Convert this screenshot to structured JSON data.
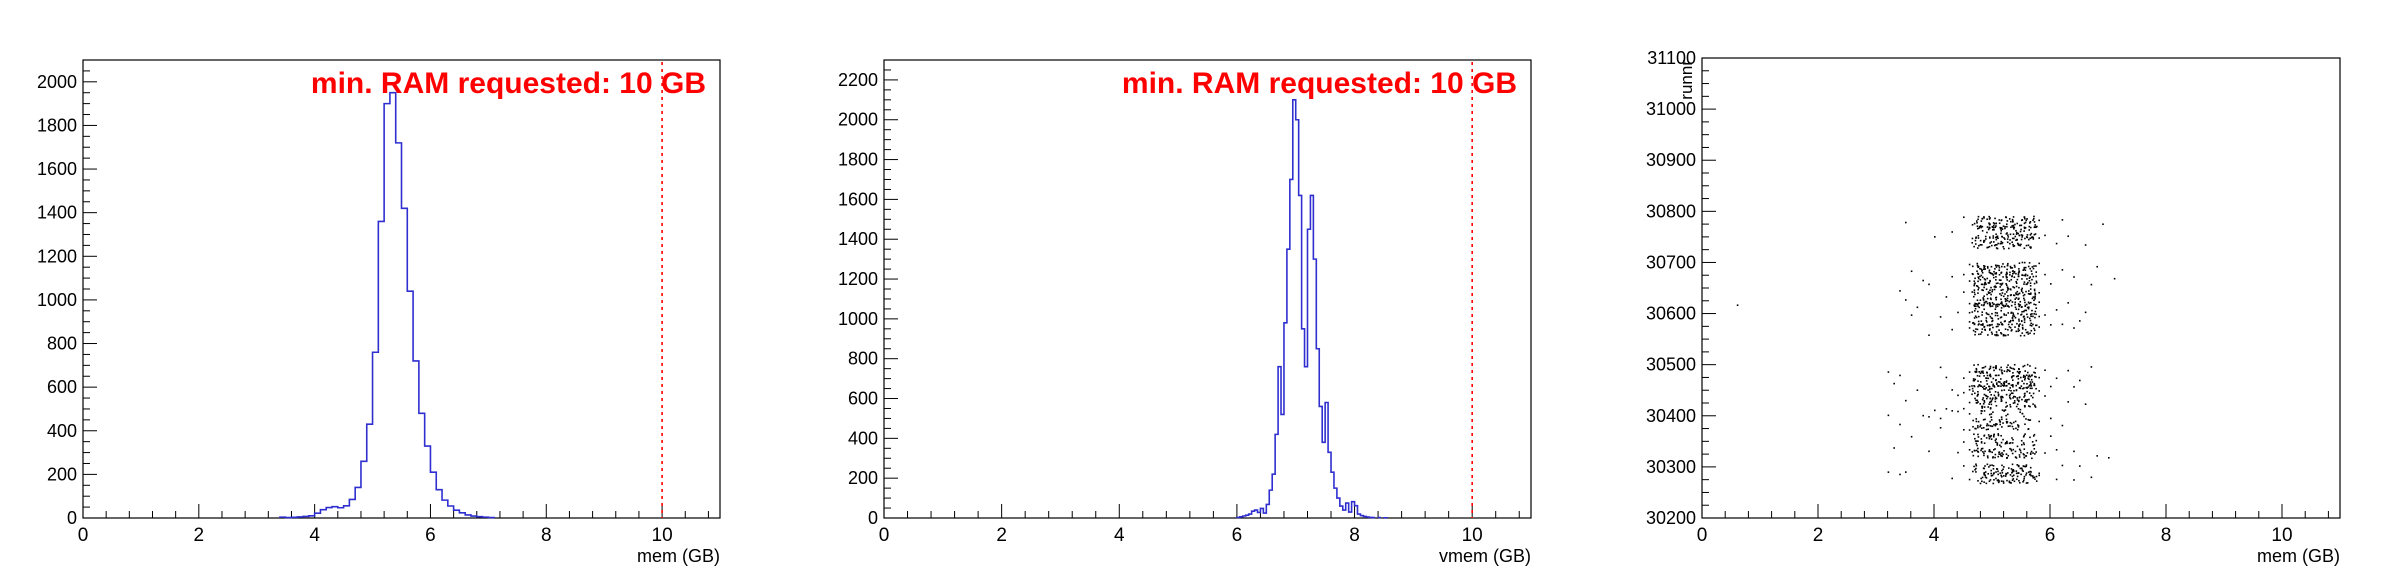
{
  "page": {
    "background": "#ffffff"
  },
  "chart_data": [
    {
      "type": "histogram",
      "xlabel": "mem (GB)",
      "ylabel": "",
      "xlim": [
        0,
        11
      ],
      "ylim": [
        0,
        2100
      ],
      "x_ticks": [
        0,
        2,
        4,
        6,
        8,
        10
      ],
      "y_ticks": [
        0,
        200,
        400,
        600,
        800,
        1000,
        1200,
        1400,
        1600,
        1800,
        2000
      ],
      "threshold": {
        "x": 10,
        "color": "#ff0000",
        "label": "min. RAM requested: 10 GB"
      },
      "line_color": "#2f2fd0",
      "bin_width": 0.1,
      "bins": [
        {
          "x": 3.4,
          "y": 4
        },
        {
          "x": 3.5,
          "y": 2
        },
        {
          "x": 3.6,
          "y": 3
        },
        {
          "x": 3.7,
          "y": 5
        },
        {
          "x": 3.8,
          "y": 7
        },
        {
          "x": 3.9,
          "y": 10
        },
        {
          "x": 4.0,
          "y": 22
        },
        {
          "x": 4.1,
          "y": 38
        },
        {
          "x": 4.2,
          "y": 48
        },
        {
          "x": 4.3,
          "y": 52
        },
        {
          "x": 4.4,
          "y": 47
        },
        {
          "x": 4.5,
          "y": 56
        },
        {
          "x": 4.6,
          "y": 85
        },
        {
          "x": 4.7,
          "y": 140
        },
        {
          "x": 4.8,
          "y": 260
        },
        {
          "x": 4.9,
          "y": 430
        },
        {
          "x": 5.0,
          "y": 760
        },
        {
          "x": 5.1,
          "y": 1360
        },
        {
          "x": 5.2,
          "y": 1900
        },
        {
          "x": 5.3,
          "y": 1950
        },
        {
          "x": 5.4,
          "y": 1720
        },
        {
          "x": 5.5,
          "y": 1420
        },
        {
          "x": 5.6,
          "y": 1040
        },
        {
          "x": 5.7,
          "y": 720
        },
        {
          "x": 5.8,
          "y": 480
        },
        {
          "x": 5.9,
          "y": 330
        },
        {
          "x": 6.0,
          "y": 210
        },
        {
          "x": 6.1,
          "y": 130
        },
        {
          "x": 6.2,
          "y": 82
        },
        {
          "x": 6.3,
          "y": 55
        },
        {
          "x": 6.4,
          "y": 36
        },
        {
          "x": 6.5,
          "y": 24
        },
        {
          "x": 6.6,
          "y": 14
        },
        {
          "x": 6.7,
          "y": 9
        },
        {
          "x": 6.8,
          "y": 6
        },
        {
          "x": 6.9,
          "y": 4
        },
        {
          "x": 7.0,
          "y": 2
        }
      ]
    },
    {
      "type": "histogram",
      "xlabel": "vmem (GB)",
      "ylabel": "",
      "xlim": [
        0,
        11
      ],
      "ylim": [
        0,
        2300
      ],
      "x_ticks": [
        0,
        2,
        4,
        6,
        8,
        10
      ],
      "y_ticks": [
        0,
        200,
        400,
        600,
        800,
        1000,
        1200,
        1400,
        1600,
        1800,
        2000,
        2200
      ],
      "threshold": {
        "x": 10,
        "color": "#ff0000",
        "label": "min. RAM requested: 10 GB"
      },
      "line_color": "#2f2fd0",
      "bin_width": 0.05,
      "bins": [
        {
          "x": 6.0,
          "y": 3
        },
        {
          "x": 6.05,
          "y": 6
        },
        {
          "x": 6.1,
          "y": 10
        },
        {
          "x": 6.15,
          "y": 14
        },
        {
          "x": 6.2,
          "y": 20
        },
        {
          "x": 6.25,
          "y": 34
        },
        {
          "x": 6.3,
          "y": 40
        },
        {
          "x": 6.35,
          "y": 28
        },
        {
          "x": 6.4,
          "y": 48
        },
        {
          "x": 6.45,
          "y": 25
        },
        {
          "x": 6.5,
          "y": 68
        },
        {
          "x": 6.55,
          "y": 140
        },
        {
          "x": 6.6,
          "y": 220
        },
        {
          "x": 6.65,
          "y": 420
        },
        {
          "x": 6.7,
          "y": 760
        },
        {
          "x": 6.75,
          "y": 520
        },
        {
          "x": 6.8,
          "y": 980
        },
        {
          "x": 6.85,
          "y": 1350
        },
        {
          "x": 6.9,
          "y": 1700
        },
        {
          "x": 6.95,
          "y": 2100
        },
        {
          "x": 7.0,
          "y": 2000
        },
        {
          "x": 7.05,
          "y": 1620
        },
        {
          "x": 7.1,
          "y": 950
        },
        {
          "x": 7.15,
          "y": 760
        },
        {
          "x": 7.2,
          "y": 1450
        },
        {
          "x": 7.25,
          "y": 1620
        },
        {
          "x": 7.3,
          "y": 1300
        },
        {
          "x": 7.35,
          "y": 850
        },
        {
          "x": 7.4,
          "y": 560
        },
        {
          "x": 7.45,
          "y": 380
        },
        {
          "x": 7.5,
          "y": 580
        },
        {
          "x": 7.55,
          "y": 330
        },
        {
          "x": 7.6,
          "y": 230
        },
        {
          "x": 7.65,
          "y": 150
        },
        {
          "x": 7.7,
          "y": 100
        },
        {
          "x": 7.75,
          "y": 60
        },
        {
          "x": 7.8,
          "y": 40
        },
        {
          "x": 7.85,
          "y": 75
        },
        {
          "x": 7.9,
          "y": 30
        },
        {
          "x": 7.95,
          "y": 82
        },
        {
          "x": 8.0,
          "y": 62
        },
        {
          "x": 8.05,
          "y": 20
        },
        {
          "x": 8.1,
          "y": 12
        },
        {
          "x": 8.15,
          "y": 8
        },
        {
          "x": 8.2,
          "y": 5
        },
        {
          "x": 8.25,
          "y": 3
        },
        {
          "x": 8.3,
          "y": 2
        },
        {
          "x": 8.4,
          "y": 2
        },
        {
          "x": 8.5,
          "y": 1
        }
      ]
    },
    {
      "type": "scatter",
      "xlabel": "mem (GB)",
      "ylabel": "runnr",
      "xlim": [
        0,
        11
      ],
      "ylim": [
        30200,
        31100
      ],
      "x_ticks": [
        0,
        2,
        4,
        6,
        8,
        10
      ],
      "y_ticks": [
        30200,
        30300,
        30400,
        30500,
        30600,
        30700,
        30800,
        30900,
        31000,
        31100
      ],
      "point_color": "#000000",
      "runs": [
        {
          "y": 30280,
          "x": [
            3.2,
            3.5,
            4.3,
            4.6,
            4.8,
            4.9,
            5.0,
            5.1,
            5.2,
            5.3,
            5.4,
            5.5,
            5.6,
            5.7,
            5.8,
            6.1,
            6.4,
            6.7
          ]
        },
        {
          "y": 30295,
          "x": [
            3.4,
            4.5,
            4.7,
            4.9,
            5.0,
            5.1,
            5.2,
            5.3,
            5.4,
            5.5,
            5.6,
            5.8,
            6.2,
            6.5
          ]
        },
        {
          "y": 30330,
          "x": [
            3.3,
            3.9,
            4.4,
            4.6,
            4.7,
            4.8,
            4.9,
            5.0,
            5.1,
            5.2,
            5.3,
            5.4,
            5.5,
            5.6,
            5.7,
            5.9,
            6.1,
            6.4,
            6.8,
            7.0
          ]
        },
        {
          "y": 30355,
          "x": [
            3.6,
            4.5,
            4.7,
            4.8,
            4.9,
            5.0,
            5.1,
            5.2,
            5.3,
            5.5,
            5.7,
            6.0
          ]
        },
        {
          "y": 30385,
          "x": [
            3.4,
            4.1,
            4.5,
            4.6,
            4.7,
            4.8,
            4.9,
            5.0,
            5.1,
            5.2,
            5.3,
            5.4,
            5.6,
            5.8,
            6.2
          ]
        },
        {
          "y": 30408,
          "x": [
            3.2,
            3.8,
            3.9,
            4.0,
            4.1,
            4.2,
            4.3,
            4.4,
            4.5,
            4.6,
            4.8,
            5.0,
            5.2,
            5.5,
            6.0
          ]
        },
        {
          "y": 30430,
          "x": [
            3.5,
            4.4,
            4.6,
            4.7,
            4.8,
            4.9,
            5.0,
            5.1,
            5.2,
            5.3,
            5.4,
            5.5,
            5.6,
            5.7,
            5.9,
            6.3,
            6.6
          ]
        },
        {
          "y": 30450,
          "x": [
            3.7,
            4.3,
            4.5,
            4.6,
            4.7,
            4.8,
            4.9,
            5.0,
            5.1,
            5.2,
            5.3,
            5.4,
            5.5,
            5.6,
            5.7,
            5.8,
            6.0,
            6.4
          ]
        },
        {
          "y": 30470,
          "x": [
            3.3,
            4.2,
            4.5,
            4.6,
            4.7,
            4.8,
            4.9,
            5.0,
            5.1,
            5.2,
            5.3,
            5.4,
            5.5,
            5.6,
            5.7,
            5.8,
            6.1,
            6.5
          ]
        },
        {
          "y": 30490,
          "x": [
            3.2,
            3.4,
            4.1,
            4.6,
            4.7,
            4.8,
            4.9,
            5.0,
            5.1,
            5.2,
            5.3,
            5.4,
            5.5,
            5.6,
            5.7,
            5.9,
            6.3,
            6.7
          ]
        },
        {
          "y": 30570,
          "x": [
            3.9,
            4.3,
            4.6,
            4.7,
            4.8,
            4.9,
            5.0,
            5.1,
            5.2,
            5.3,
            5.4,
            5.5,
            5.6,
            5.7,
            5.8,
            6.0,
            6.4
          ]
        },
        {
          "y": 30590,
          "x": [
            3.6,
            4.1,
            4.6,
            4.7,
            4.8,
            4.9,
            5.0,
            5.1,
            5.2,
            5.3,
            5.4,
            5.5,
            5.6,
            5.7,
            5.8,
            6.2,
            6.5
          ]
        },
        {
          "y": 30610,
          "x": [
            0.6,
            3.7,
            4.4,
            4.6,
            4.7,
            4.8,
            4.9,
            5.0,
            5.1,
            5.2,
            5.3,
            5.4,
            5.5,
            5.6,
            5.7,
            5.9,
            6.1,
            6.6
          ]
        },
        {
          "y": 30630,
          "x": [
            3.5,
            4.2,
            4.6,
            4.7,
            4.8,
            4.9,
            5.0,
            5.1,
            5.2,
            5.3,
            5.4,
            5.5,
            5.6,
            5.7,
            5.8,
            6.3
          ]
        },
        {
          "y": 30650,
          "x": [
            3.4,
            3.9,
            4.5,
            4.7,
            4.8,
            4.9,
            5.0,
            5.1,
            5.2,
            5.3,
            5.4,
            5.5,
            5.6,
            5.7,
            5.8,
            6.0,
            6.7
          ]
        },
        {
          "y": 30670,
          "x": [
            3.8,
            4.3,
            4.5,
            4.6,
            4.7,
            4.8,
            4.9,
            5.0,
            5.1,
            5.2,
            5.3,
            5.4,
            5.5,
            5.6,
            5.7,
            5.9,
            6.4,
            7.1
          ]
        },
        {
          "y": 30690,
          "x": [
            3.6,
            4.6,
            4.7,
            4.8,
            4.9,
            5.0,
            5.1,
            5.2,
            5.3,
            5.4,
            5.5,
            5.6,
            5.7,
            5.8,
            6.2,
            6.8
          ]
        },
        {
          "y": 30740,
          "x": [
            4.0,
            4.7,
            4.8,
            4.9,
            5.0,
            5.1,
            5.2,
            5.3,
            5.4,
            5.5,
            5.6,
            5.7,
            5.8,
            6.1,
            6.6
          ]
        },
        {
          "y": 30760,
          "x": [
            4.3,
            4.8,
            4.9,
            5.0,
            5.1,
            5.2,
            5.3,
            5.4,
            5.5,
            5.6,
            5.7,
            5.9,
            6.3
          ]
        },
        {
          "y": 30780,
          "x": [
            3.5,
            4.5,
            4.7,
            4.8,
            4.9,
            5.0,
            5.1,
            5.2,
            5.3,
            5.4,
            5.5,
            5.6,
            5.7,
            5.8,
            6.2,
            6.9
          ]
        }
      ]
    }
  ]
}
